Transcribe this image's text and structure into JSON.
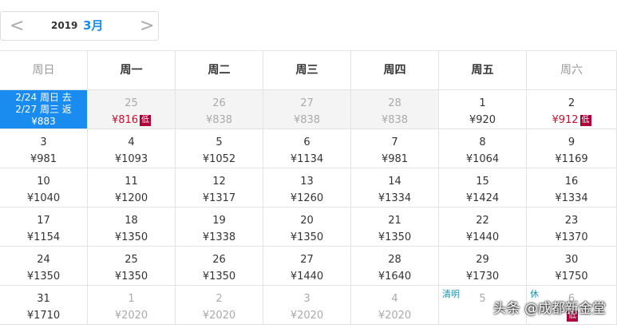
{
  "header": {
    "prev": "<",
    "year": "2019",
    "month": "3月",
    "next": ">"
  },
  "weekdays": [
    "周日",
    "周一",
    "周二",
    "周三",
    "周四",
    "周五",
    "周六"
  ],
  "selected": {
    "depart": "2/24 周日 去",
    "return": "2/27 周三 返",
    "price": "¥883"
  },
  "weeks": [
    [
      null,
      {
        "day": "25",
        "price": "¥816",
        "badge": "低",
        "low": true,
        "muted": true,
        "shade": true
      },
      {
        "day": "26",
        "price": "¥838",
        "muted": true,
        "shade": true
      },
      {
        "day": "27",
        "price": "¥838",
        "muted": true,
        "shade": true
      },
      {
        "day": "28",
        "price": "¥838",
        "muted": true,
        "shade": true
      },
      {
        "day": "1",
        "price": "¥920"
      },
      {
        "day": "2",
        "price": "¥912",
        "badge": "低",
        "low": true
      }
    ],
    [
      {
        "day": "3",
        "price": "¥981"
      },
      {
        "day": "4",
        "price": "¥1093"
      },
      {
        "day": "5",
        "price": "¥1052"
      },
      {
        "day": "6",
        "price": "¥1134"
      },
      {
        "day": "7",
        "price": "¥981"
      },
      {
        "day": "8",
        "price": "¥1064"
      },
      {
        "day": "9",
        "price": "¥1169"
      }
    ],
    [
      {
        "day": "10",
        "price": "¥1040"
      },
      {
        "day": "11",
        "price": "¥1200"
      },
      {
        "day": "12",
        "price": "¥1317"
      },
      {
        "day": "13",
        "price": "¥1260"
      },
      {
        "day": "14",
        "price": "¥1334"
      },
      {
        "day": "15",
        "price": "¥1424"
      },
      {
        "day": "16",
        "price": "¥1334"
      }
    ],
    [
      {
        "day": "17",
        "price": "¥1154"
      },
      {
        "day": "18",
        "price": "¥1350"
      },
      {
        "day": "19",
        "price": "¥1338"
      },
      {
        "day": "20",
        "price": "¥1350"
      },
      {
        "day": "21",
        "price": "¥1350"
      },
      {
        "day": "22",
        "price": "¥1440"
      },
      {
        "day": "23",
        "price": "¥1370"
      }
    ],
    [
      {
        "day": "24",
        "price": "¥1350"
      },
      {
        "day": "25",
        "price": "¥1350"
      },
      {
        "day": "26",
        "price": "¥1350"
      },
      {
        "day": "27",
        "price": "¥1440"
      },
      {
        "day": "28",
        "price": "¥1640"
      },
      {
        "day": "29",
        "price": "¥1730"
      },
      {
        "day": "30",
        "price": "¥1750"
      }
    ],
    [
      {
        "day": "31",
        "price": "¥1710"
      },
      {
        "day": "1",
        "price": "¥2020",
        "muted": true
      },
      {
        "day": "2",
        "price": "¥2020",
        "muted": true
      },
      {
        "day": "3",
        "price": "¥2020",
        "muted": true
      },
      {
        "day": "4",
        "price": "¥2020",
        "muted": true
      },
      {
        "day": "5",
        "note": "清明",
        "muted": true
      },
      {
        "day": "6",
        "note": "休",
        "badge": "低",
        "muted": true
      }
    ]
  ],
  "watermark": "头条 @成都新金堂"
}
